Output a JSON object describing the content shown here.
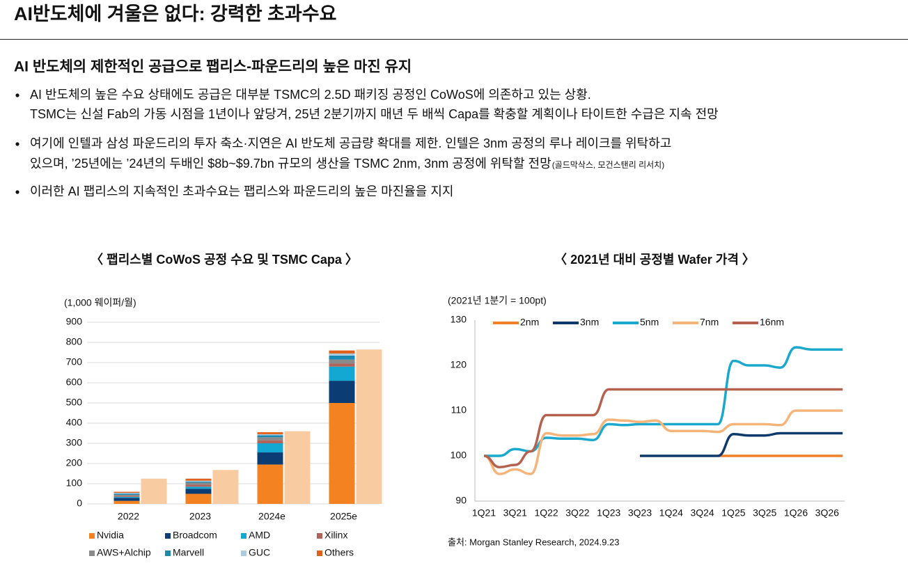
{
  "header": {
    "title": "AI반도체에 겨울은 없다: 강력한 초과수요"
  },
  "subtitle": "AI 반도체의 제한적인 공급으로 팹리스-파운드리의 높은 마진 유지",
  "bullets": [
    [
      "AI 반도체의 높은 수요 상태에도 공급은 대부분 TSMC의 2.5D 패키징 공정인 CoWoS에 의존하고 있는 상황.",
      "TSMC는 신설 Fab의 가동 시점을 1년이나 앞당겨, 25년 2분기까지 매년 두 배씩 Capa를 확충할 계획이나 타이트한 수급은 지속 전망"
    ],
    [
      "여기에 인텔과 삼성 파운드리의 투자 축소·지연은 AI 반도체 공급량 확대를 제한. 인텔은 3nm 공정의 루나 레이크를 위탁하고",
      "있으며, ’25년에는 ’24년의 두배인 $8b~$9.7bn 규모의 생산을 TSMC 2nm, 3nm 공정에 위탁할 전망"
    ],
    [
      "이러한 AI 팹리스의 지속적인 초과수요는 팹리스와 파운드리의 높은 마진율을 지지"
    ]
  ],
  "bullet_note": "(골드막삭스, 모건스탠리 리서치)",
  "source": "출처: Morgan Stanley Research, 2024.9.23",
  "chart_data": [
    {
      "type": "bar",
      "title": "〈 팹리스별 CoWoS 공정 수요 및 TSMC Capa 〉",
      "y_label": "(1,000 웨이퍼/월)",
      "categories": [
        "2022",
        "2023",
        "2024e",
        "2025e"
      ],
      "series": [
        {
          "name": "Nvidia",
          "color": "#f58220",
          "values": [
            15,
            50,
            195,
            500
          ]
        },
        {
          "name": "Broadcom",
          "color": "#0b3c73",
          "values": [
            15,
            25,
            60,
            110
          ]
        },
        {
          "name": "AMD",
          "color": "#13a8d1",
          "values": [
            5,
            10,
            45,
            70
          ]
        },
        {
          "name": "Xilinx",
          "color": "#b0645a",
          "values": [
            5,
            10,
            15,
            15
          ]
        },
        {
          "name": "AWS+Alchip",
          "color": "#8a8a8a",
          "values": [
            5,
            10,
            15,
            20
          ]
        },
        {
          "name": "Marvell",
          "color": "#1a8ab3",
          "values": [
            5,
            5,
            10,
            20
          ]
        },
        {
          "name": "GUC",
          "color": "#a9cce3",
          "values": [
            5,
            5,
            5,
            10
          ]
        },
        {
          "name": "Others",
          "color": "#e0621a",
          "values": [
            5,
            10,
            10,
            15
          ]
        }
      ],
      "capa": {
        "color": "#f9cba1",
        "values": [
          125,
          168,
          360,
          765
        ]
      },
      "ylim": [
        0,
        900
      ],
      "yticks": [
        0,
        100,
        200,
        300,
        400,
        500,
        600,
        700,
        800,
        900
      ],
      "grid": true,
      "legend": "bottom"
    },
    {
      "type": "line",
      "title": "〈 2021년 대비 공정별 Wafer 가격 〉",
      "y_label": "(2021년 1분기 = 100pt)",
      "categories": [
        "1Q21",
        null,
        "3Q21",
        null,
        "1Q22",
        null,
        "3Q22",
        null,
        "1Q23",
        null,
        "3Q23",
        null,
        "1Q24",
        null,
        "3Q24",
        null,
        "1Q25",
        null,
        "3Q25",
        null,
        "1Q26",
        null,
        "3Q26",
        null
      ],
      "series": [
        {
          "name": "2nm",
          "color": "#f0812a",
          "values": [
            null,
            null,
            null,
            null,
            null,
            null,
            null,
            null,
            null,
            null,
            null,
            null,
            null,
            null,
            null,
            100,
            100,
            100,
            100,
            100,
            100,
            100,
            100,
            100
          ]
        },
        {
          "name": "3nm",
          "color": "#0d3a6b",
          "values": [
            null,
            null,
            null,
            null,
            null,
            null,
            null,
            null,
            null,
            null,
            100,
            100,
            100,
            100,
            100,
            100,
            104.8,
            104.5,
            104.5,
            105,
            105,
            105,
            105,
            105
          ]
        },
        {
          "name": "5nm",
          "color": "#1aa9cc",
          "values": [
            100,
            100,
            101.5,
            101,
            104,
            103.8,
            103.8,
            103.5,
            107,
            106.8,
            107,
            107,
            107,
            107,
            107,
            107,
            121,
            120,
            120,
            119.5,
            124,
            123.5,
            123.5,
            123.5
          ]
        },
        {
          "name": "7nm",
          "color": "#f4b47a",
          "values": [
            100,
            96,
            97,
            96,
            105,
            104.5,
            104.5,
            104.8,
            108,
            107.8,
            107.5,
            107.8,
            105.5,
            105.5,
            105.5,
            105.3,
            107,
            107,
            107,
            106.8,
            110,
            110,
            110,
            110
          ]
        },
        {
          "name": "16nm",
          "color": "#b5614e",
          "values": [
            100,
            97.5,
            98,
            101,
            109,
            109,
            109,
            109,
            114.7,
            114.7,
            114.7,
            114.7,
            114.7,
            114.7,
            114.7,
            114.7,
            114.7,
            114.7,
            114.7,
            114.7,
            114.7,
            114.7,
            114.7,
            114.7
          ]
        }
      ],
      "ylim": [
        90,
        130
      ],
      "yticks": [
        90,
        100,
        110,
        120,
        130
      ],
      "grid": false,
      "legend": "top"
    }
  ]
}
